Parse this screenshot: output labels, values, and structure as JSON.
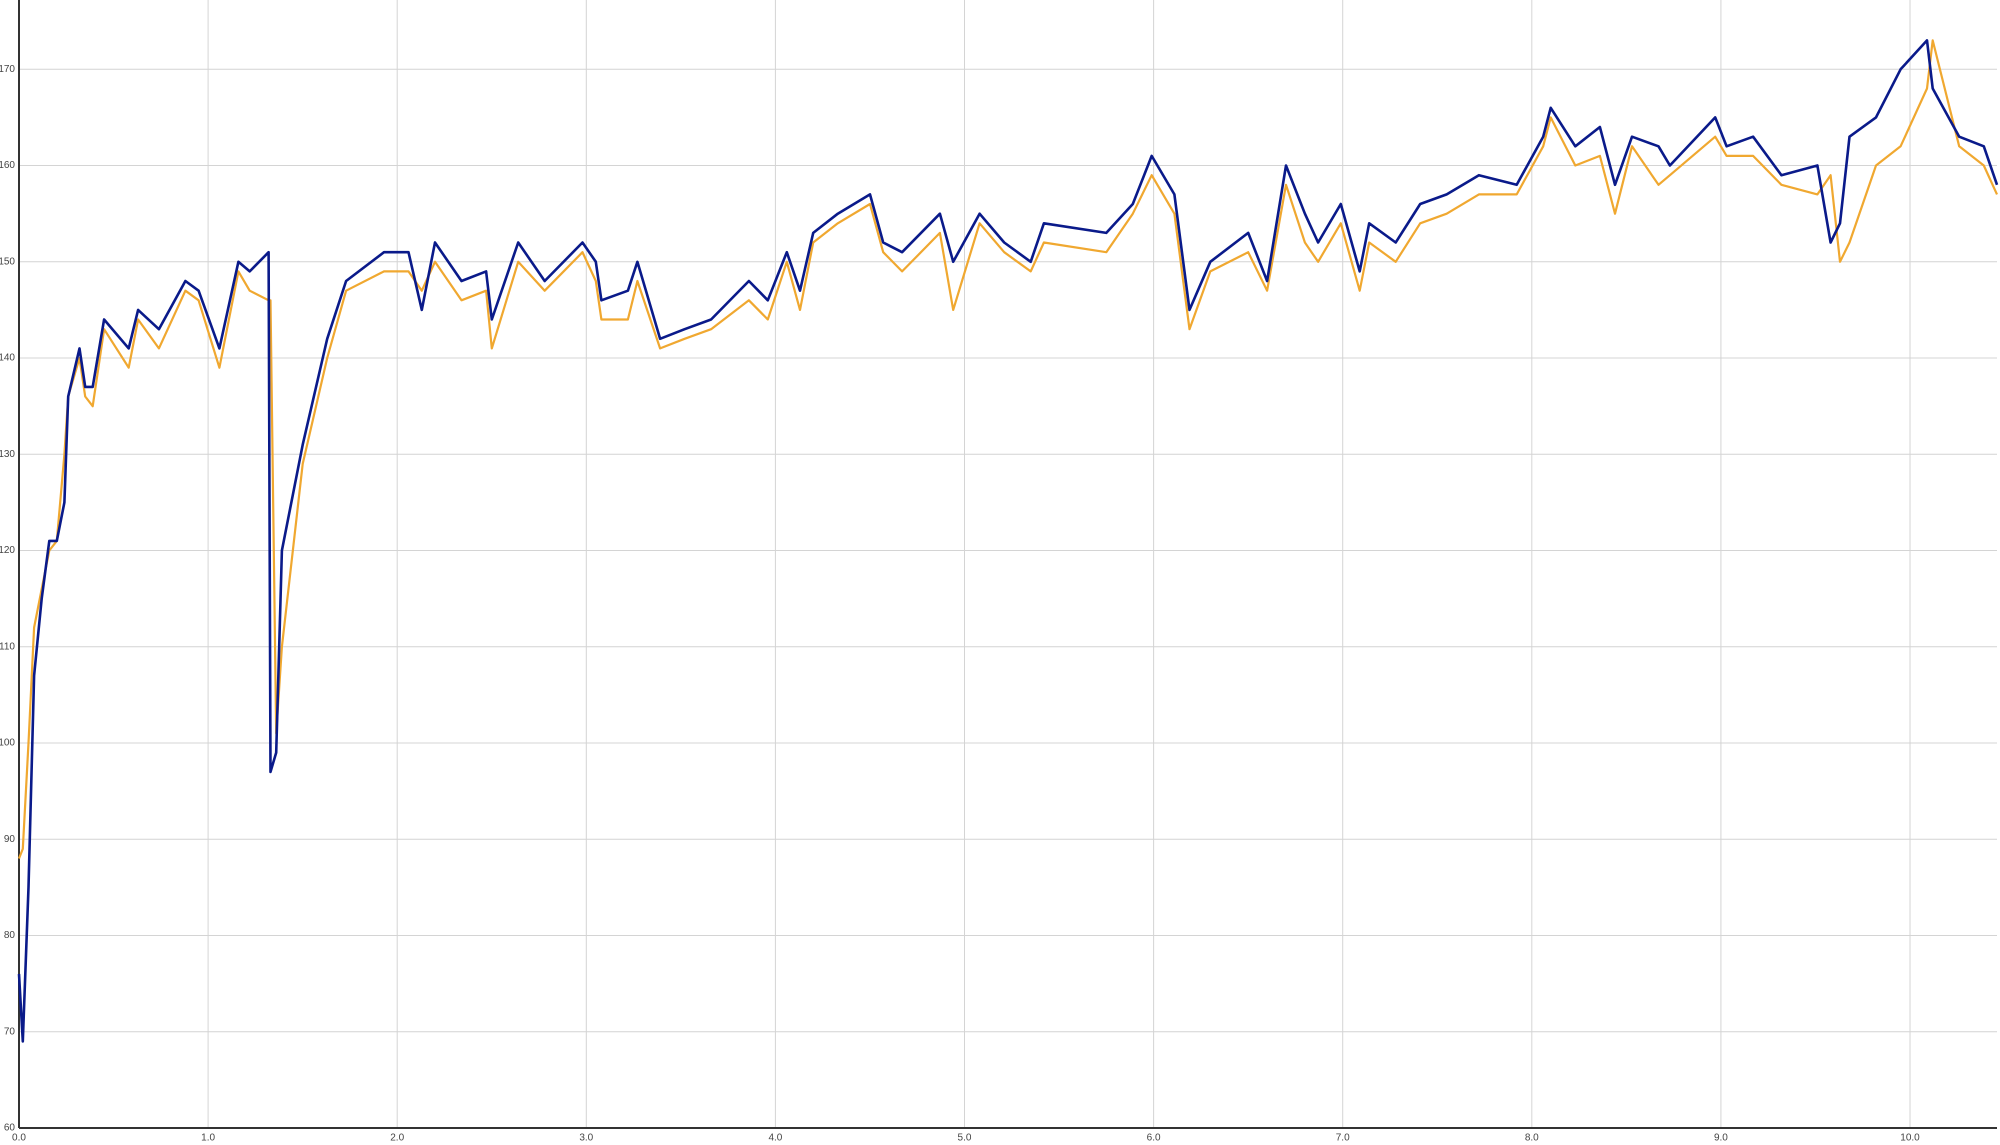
{
  "chart_data": {
    "type": "line",
    "x": [
      0.0,
      0.02,
      0.05,
      0.08,
      0.12,
      0.16,
      0.2,
      0.24,
      0.26,
      0.32,
      0.35,
      0.39,
      0.45,
      0.58,
      0.63,
      0.74,
      0.88,
      0.95,
      1.06,
      1.16,
      1.22,
      1.32,
      1.33,
      1.36,
      1.39,
      1.5,
      1.63,
      1.73,
      1.93,
      2.06,
      2.13,
      2.2,
      2.34,
      2.47,
      2.5,
      2.64,
      2.78,
      2.98,
      3.05,
      3.08,
      3.22,
      3.27,
      3.39,
      3.52,
      3.66,
      3.86,
      3.96,
      4.06,
      4.13,
      4.2,
      4.33,
      4.5,
      4.57,
      4.67,
      4.87,
      4.94,
      5.08,
      5.21,
      5.35,
      5.42,
      5.75,
      5.89,
      5.99,
      6.11,
      6.19,
      6.3,
      6.5,
      6.6,
      6.7,
      6.8,
      6.87,
      6.99,
      7.09,
      7.14,
      7.28,
      7.41,
      7.55,
      7.72,
      7.92,
      8.06,
      8.1,
      8.23,
      8.36,
      8.44,
      8.53,
      8.67,
      8.73,
      8.97,
      9.03,
      9.17,
      9.32,
      9.51,
      9.58,
      9.63,
      9.68,
      9.82,
      9.95,
      10.09,
      10.12,
      10.26,
      10.39,
      10.46
    ],
    "series": [
      {
        "color": "#f0a830",
        "values": [
          88,
          89,
          100,
          112,
          116,
          120,
          121,
          130,
          136,
          140,
          136,
          135,
          143,
          139,
          144,
          141,
          147,
          146,
          139,
          149,
          147,
          146,
          146,
          101,
          110,
          129,
          140,
          147,
          149,
          149,
          147,
          150,
          146,
          147,
          141,
          150,
          147,
          151,
          148,
          144,
          144,
          148,
          141,
          142,
          143,
          146,
          144,
          150,
          145,
          152,
          154,
          156,
          151,
          149,
          153,
          145,
          154,
          151,
          149,
          152,
          151,
          155,
          159,
          155,
          143,
          149,
          151,
          147,
          158,
          152,
          150,
          154,
          147,
          152,
          150,
          154,
          155,
          157,
          157,
          162,
          165,
          160,
          161,
          155,
          162,
          158,
          159,
          163,
          161,
          161,
          158,
          157,
          159,
          150,
          152,
          160,
          162,
          168,
          173,
          162,
          160,
          157
        ]
      },
      {
        "color": "#0a1a8a",
        "values": [
          76,
          69,
          85,
          107,
          115,
          121,
          121,
          125,
          136,
          141,
          137,
          137,
          144,
          141,
          145,
          143,
          148,
          147,
          141,
          150,
          149,
          151,
          97,
          99,
          120,
          131,
          142,
          148,
          151,
          151,
          145,
          152,
          148,
          149,
          144,
          152,
          148,
          152,
          150,
          146,
          147,
          150,
          142,
          143,
          144,
          148,
          146,
          151,
          147,
          153,
          155,
          157,
          152,
          151,
          155,
          150,
          155,
          152,
          150,
          154,
          153,
          156,
          161,
          157,
          145,
          150,
          153,
          148,
          160,
          155,
          152,
          156,
          149,
          154,
          152,
          156,
          157,
          159,
          158,
          163,
          166,
          162,
          164,
          158,
          163,
          162,
          160,
          165,
          162,
          163,
          159,
          160,
          152,
          154,
          163,
          165,
          170,
          173,
          168,
          163,
          162,
          158
        ]
      }
    ],
    "xlim": [
      0,
      10.46
    ],
    "ylim": [
      60,
      177.2
    ],
    "xticks": [
      {
        "value": 0,
        "label": "0.0"
      },
      {
        "value": 1,
        "label": "1.0"
      },
      {
        "value": 2,
        "label": "2.0"
      },
      {
        "value": 3,
        "label": "3.0"
      },
      {
        "value": 4,
        "label": "4.0"
      },
      {
        "value": 5,
        "label": "5.0"
      },
      {
        "value": 6,
        "label": "6.0"
      },
      {
        "value": 7,
        "label": "7.0"
      },
      {
        "value": 8,
        "label": "8.0"
      },
      {
        "value": 9,
        "label": "9.0"
      },
      {
        "value": 10,
        "label": "10.0"
      }
    ],
    "yticks": [
      60,
      70,
      80,
      90,
      100,
      110,
      120,
      130,
      140,
      150,
      160,
      170
    ],
    "grid": true
  }
}
